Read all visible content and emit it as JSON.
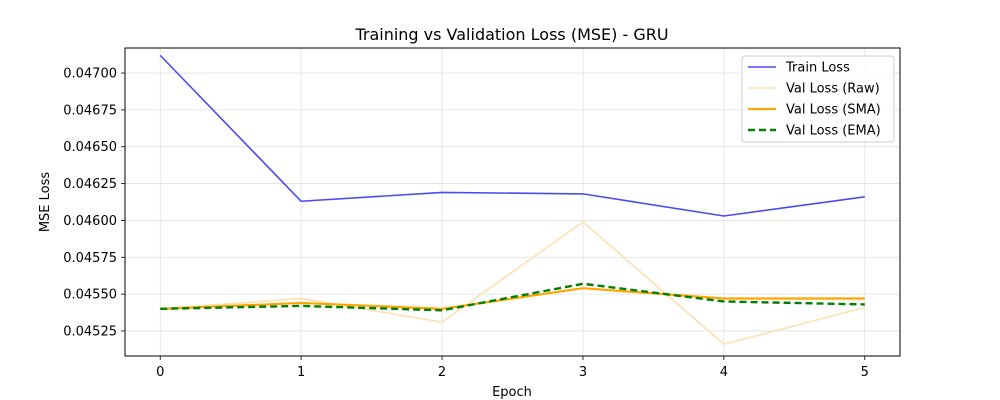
{
  "chart_data": {
    "type": "line",
    "title": "Training vs Validation Loss (MSE) - GRU",
    "xlabel": "Epoch",
    "ylabel": "MSE Loss",
    "x": [
      0,
      1,
      2,
      3,
      4,
      5
    ],
    "xlim": [
      -0.25,
      5.25
    ],
    "ylim": [
      0.04508,
      0.04717
    ],
    "x_ticks": [
      "0",
      "1",
      "2",
      "3",
      "4",
      "5"
    ],
    "y_ticks": [
      {
        "value": 0.04525,
        "label": "0.04525"
      },
      {
        "value": 0.0455,
        "label": "0.04550"
      },
      {
        "value": 0.04575,
        "label": "0.04575"
      },
      {
        "value": 0.046,
        "label": "0.04600"
      },
      {
        "value": 0.04625,
        "label": "0.04625"
      },
      {
        "value": 0.0465,
        "label": "0.04650"
      },
      {
        "value": 0.04675,
        "label": "0.04675"
      },
      {
        "value": 0.047,
        "label": "0.04700"
      }
    ],
    "grid": true,
    "legend_position": "top-right",
    "series": [
      {
        "name": "Train Loss",
        "color": "#4b4bee",
        "style": "solid",
        "values": [
          0.04712,
          0.04613,
          0.04619,
          0.04618,
          0.04603,
          0.04616
        ]
      },
      {
        "name": "Val Loss (Raw)",
        "color": "#ffe0b0",
        "style": "solid",
        "values": [
          0.0454,
          0.04547,
          0.04531,
          0.04599,
          0.04516,
          0.04541
        ]
      },
      {
        "name": "Val Loss (SMA)",
        "color": "#ffa500",
        "style": "solid",
        "values": [
          0.0454,
          0.04544,
          0.0454,
          0.04554,
          0.04547,
          0.04547
        ]
      },
      {
        "name": "Val Loss (EMA)",
        "color": "#008000",
        "style": "dashed",
        "values": [
          0.0454,
          0.04542,
          0.04539,
          0.04557,
          0.04545,
          0.04543
        ]
      }
    ]
  }
}
